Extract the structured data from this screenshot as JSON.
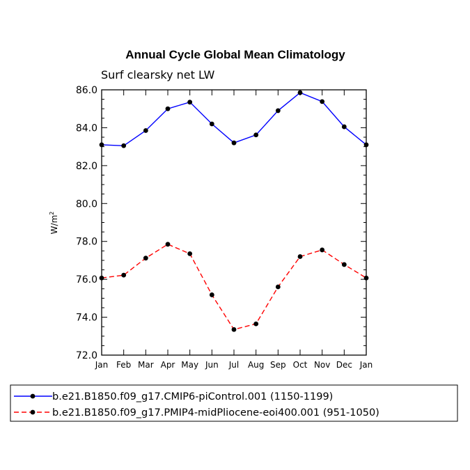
{
  "chart_data": {
    "type": "line",
    "title": "Annual Cycle Global Mean Climatology",
    "subtitle": "Surf clearsky net LW",
    "ylabel_main": "W/m",
    "ylabel_sup": "2",
    "xlabel": "",
    "categories": [
      "Jan",
      "Feb",
      "Mar",
      "Apr",
      "May",
      "Jun",
      "Jul",
      "Aug",
      "Sep",
      "Oct",
      "Nov",
      "Dec",
      "Jan"
    ],
    "ylim": [
      72.0,
      86.0
    ],
    "yticks": [
      "72.0",
      "74.0",
      "76.0",
      "78.0",
      "80.0",
      "82.0",
      "84.0",
      "86.0"
    ],
    "series": [
      {
        "name": "b.e21.B1850.f09_g17.CMIP6-piControl.001 (1150-1199)",
        "color": "#0000ff",
        "dash": "solid",
        "values": [
          83.1,
          83.05,
          83.85,
          85.0,
          85.35,
          84.2,
          83.2,
          83.62,
          84.9,
          85.85,
          85.38,
          84.05,
          83.1
        ]
      },
      {
        "name": "b.e21.B1850.f09_g17.PMIP4-midPliocene-eoi400.001 (951-1050)",
        "color": "#ff0000",
        "dash": "dashed",
        "values": [
          76.07,
          76.22,
          77.12,
          77.85,
          77.35,
          75.18,
          73.35,
          73.65,
          75.6,
          77.2,
          77.55,
          76.78,
          76.07
        ]
      }
    ],
    "legend_position": "bottom"
  }
}
